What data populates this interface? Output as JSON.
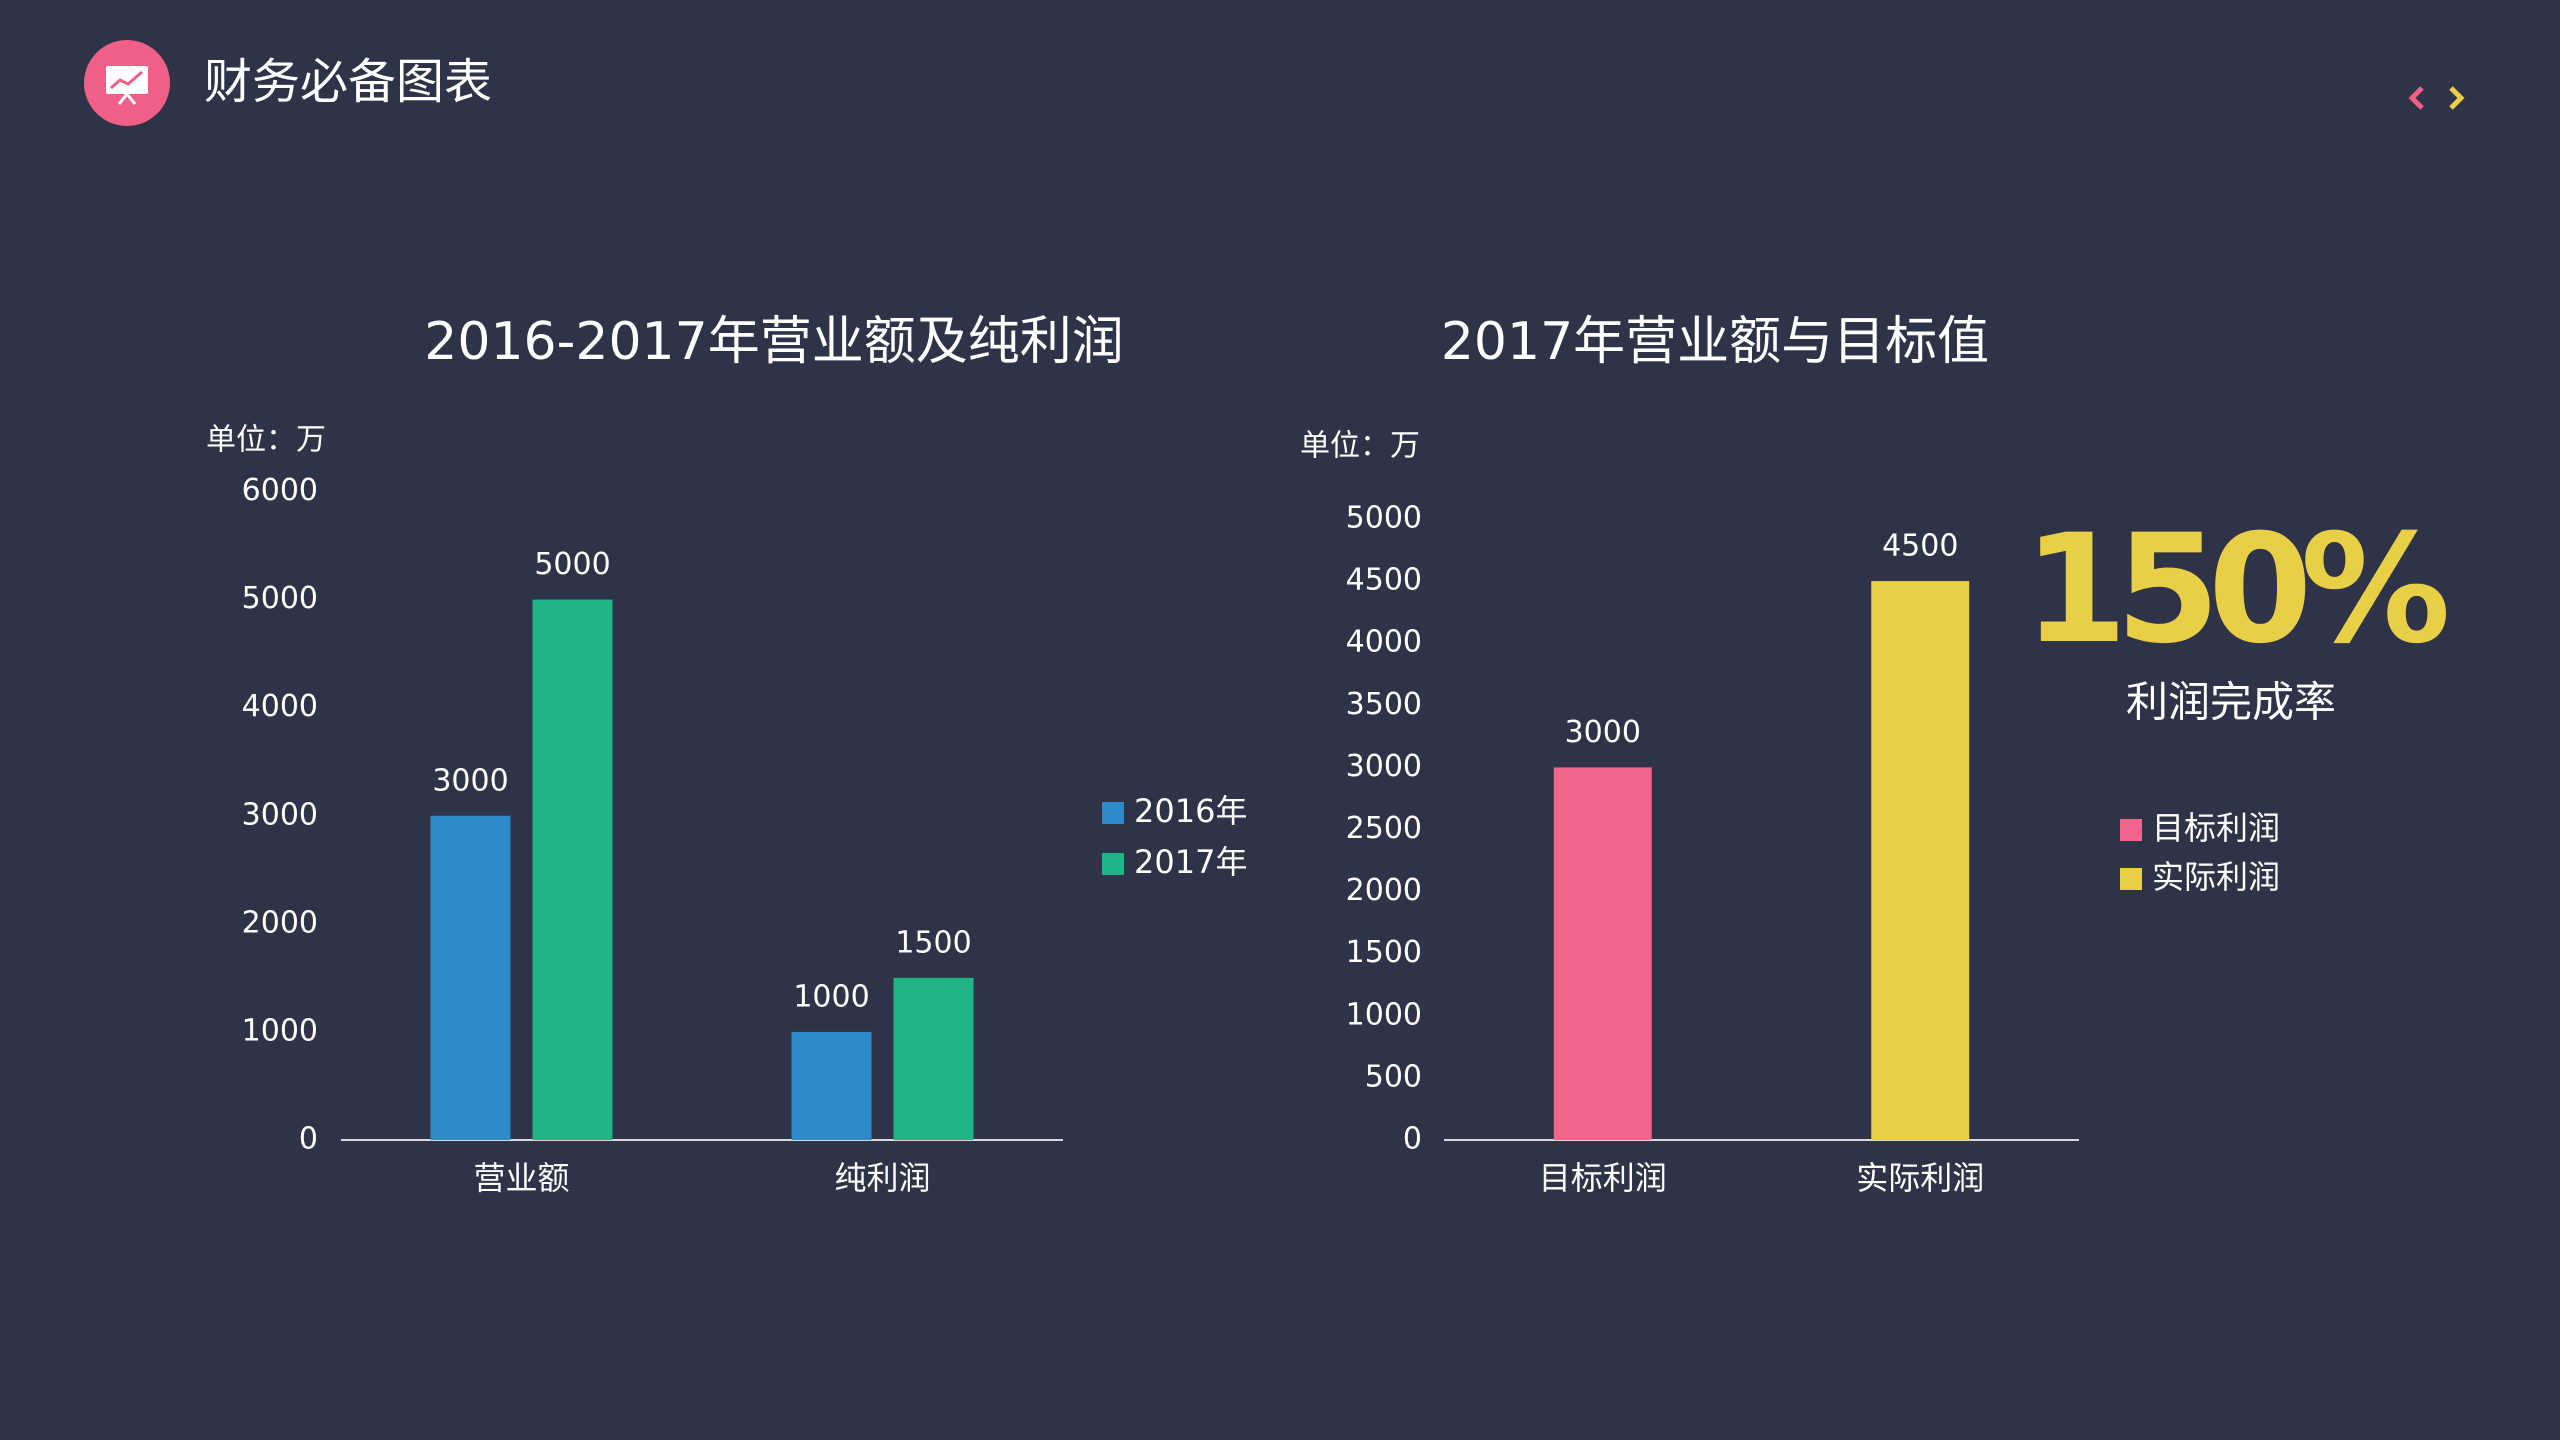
{
  "header": {
    "title": "财务必备图表"
  },
  "chart_data": [
    {
      "type": "bar",
      "title": "2016-2017年营业额及纯利润",
      "y_label": "单位：万",
      "categories": [
        "营业额",
        "纯利润"
      ],
      "series": [
        {
          "name": "2016年",
          "color": "#2e8bc9",
          "values": [
            3000,
            1000
          ]
        },
        {
          "name": "2017年",
          "color": "#1fb587",
          "values": [
            5000,
            1500
          ]
        }
      ],
      "ylim": [
        0,
        6000
      ],
      "yticks": [
        0,
        1000,
        2000,
        3000,
        4000,
        5000,
        6000
      ],
      "grid": false,
      "legend": "right"
    },
    {
      "type": "bar",
      "title": "2017年营业额与目标值",
      "y_label": "单位：万",
      "categories": [
        "目标利润",
        "实际利润"
      ],
      "values": [
        3000,
        4500
      ],
      "colors": [
        "#f0668a",
        "#e8cf45"
      ],
      "ylim": [
        0,
        5000
      ],
      "yticks": [
        0,
        500,
        1000,
        1500,
        2000,
        2500,
        3000,
        3500,
        4000,
        4500,
        5000
      ],
      "grid": false,
      "legend": "right",
      "annotations": [
        "150%",
        "利润完成率"
      ]
    }
  ]
}
